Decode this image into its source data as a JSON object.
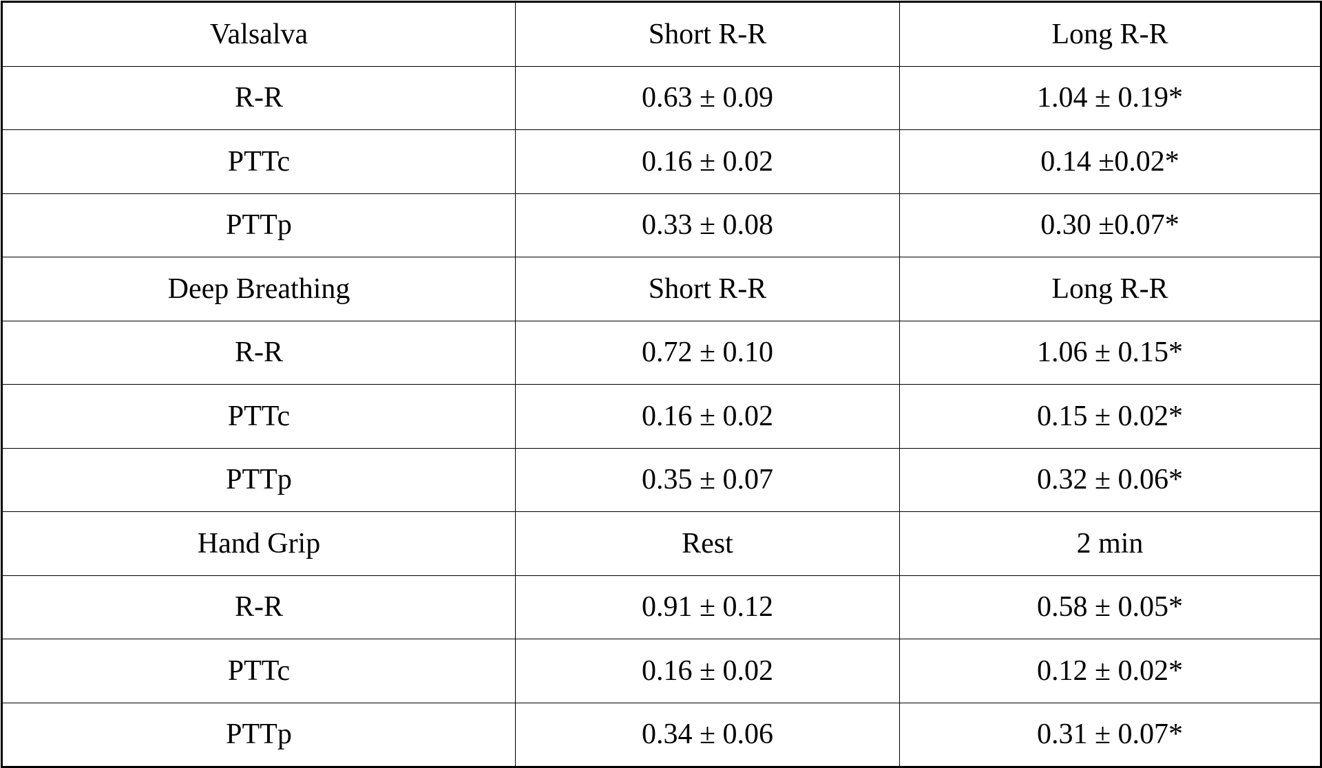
{
  "table": {
    "rows": [
      [
        "Valsalva",
        "Short R-R",
        "Long R-R"
      ],
      [
        "R-R",
        "0.63 ± 0.09",
        "1.04 ± 0.19*"
      ],
      [
        "PTTc",
        "0.16 ± 0.02",
        "0.14 ±0.02*"
      ],
      [
        "PTTp",
        "0.33 ± 0.08",
        "0.30 ±0.07*"
      ],
      [
        "Deep Breathing",
        "Short R-R",
        "Long R-R"
      ],
      [
        "R-R",
        "0.72 ± 0.10",
        "1.06 ± 0.15*"
      ],
      [
        "PTTc",
        "0.16 ± 0.02",
        "0.15 ± 0.02*"
      ],
      [
        "PTTp",
        "0.35 ± 0.07",
        "0.32 ± 0.06*"
      ],
      [
        "Hand Grip",
        "Rest",
        "2 min"
      ],
      [
        "R-R",
        "0.91 ± 0.12",
        "0.58 ± 0.05*"
      ],
      [
        "PTTc",
        "0.16 ± 0.02",
        "0.12 ± 0.02*"
      ],
      [
        "PTTp",
        "0.34 ± 0.06",
        "0.31 ± 0.07*"
      ]
    ]
  }
}
